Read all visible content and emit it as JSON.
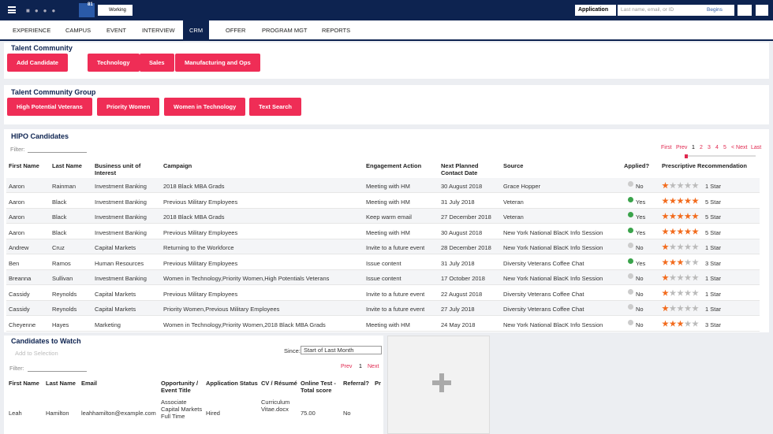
{
  "header": {
    "notification_count": "81",
    "status": "Working",
    "application_label": "Application",
    "search_placeholder": "Last name, email, or ID",
    "search_mode": "Begins"
  },
  "tabs": {
    "items": [
      "EXPERIENCE",
      "CAMPUS",
      "EVENT",
      "INTERVIEW",
      "CRM",
      "OFFER",
      "PROGRAM MGT",
      "REPORTS"
    ],
    "active": 4
  },
  "talent_community": {
    "title": "Talent Community",
    "buttons": [
      "Add Candidate",
      "Technology",
      "Sales",
      "Manufacturing and Ops"
    ]
  },
  "talent_group": {
    "title": "Talent Community Group",
    "buttons": [
      "High Potential Veterans",
      "Priority Women",
      "Women in Technology",
      "Text Search"
    ]
  },
  "hipo": {
    "title": "HIPO Candidates",
    "filter_label": "Filter:",
    "pager": [
      "First",
      "Prev",
      "1",
      "2",
      "3",
      "4",
      "5",
      "< Next",
      "Last"
    ],
    "columns": [
      "First Name",
      "Last Name",
      "Business unit of Interest",
      "Campaign",
      "Engagement Action",
      "Next Planned Contact Date",
      "Source",
      "Applied?",
      "Prescriptive Recommendation"
    ],
    "rows": [
      {
        "first": "Aaron",
        "last": "Rainman",
        "unit": "Investment Banking",
        "campaign": "2018 Black MBA Grads",
        "action": "Meeting with HM",
        "date": "30 August 2018",
        "source": "Grace Hopper",
        "applied": "No",
        "stars": 1,
        "stars_label": "1 Star"
      },
      {
        "first": "Aaron",
        "last": "Black",
        "unit": "Investment Banking",
        "campaign": "Previous Military Employees",
        "action": "Meeting with HM",
        "date": "31 July 2018",
        "source": "Veteran",
        "applied": "Yes",
        "stars": 5,
        "stars_label": "5 Star"
      },
      {
        "first": "Aaron",
        "last": "Black",
        "unit": "Investment Banking",
        "campaign": "2018 Black MBA Grads",
        "action": "Keep warm email",
        "date": "27 December 2018",
        "source": "Veteran",
        "applied": "Yes",
        "stars": 5,
        "stars_label": "5 Star"
      },
      {
        "first": "Aaron",
        "last": "Black",
        "unit": "Investment Banking",
        "campaign": "Previous Military Employees",
        "action": "Meeting with HM",
        "date": "30 August 2018",
        "source": "New York National BlacK Info Session",
        "applied": "Yes",
        "stars": 5,
        "stars_label": "5 Star"
      },
      {
        "first": "Andrew",
        "last": "Cruz",
        "unit": "Capital Markets",
        "campaign": "Returning to the Workforce",
        "action": "Invite to a future event",
        "date": "28 December 2018",
        "source": "New York National BlacK Info Session",
        "applied": "No",
        "stars": 1,
        "stars_label": "1 Star"
      },
      {
        "first": "Ben",
        "last": "Ramos",
        "unit": "Human Resources",
        "campaign": "Previous Military Employees",
        "action": "Issue content",
        "date": "31 July 2018",
        "source": "Diversity Veterans Coffee Chat",
        "applied": "Yes",
        "stars": 3,
        "stars_label": "3 Star"
      },
      {
        "first": "Breanna",
        "last": "Sullivan",
        "unit": "Investment Banking",
        "campaign": "Women in Technology,Priority Women,High Potentials Veterans",
        "action": "Issue content",
        "date": "17 October 2018",
        "source": "New York National BlacK Info Session",
        "applied": "No",
        "stars": 1,
        "stars_label": "1 Star"
      },
      {
        "first": "Cassidy",
        "last": "Reynolds",
        "unit": "Capital Markets",
        "campaign": "Previous Military Employees",
        "action": "Invite to a future event",
        "date": "22 August 2018",
        "source": "Diversity Veterans Coffee Chat",
        "applied": "No",
        "stars": 1,
        "stars_label": "1 Star"
      },
      {
        "first": "Cassidy",
        "last": "Reynolds",
        "unit": "Capital Markets",
        "campaign": "Priority Women,Previous Military Employees",
        "action": "Invite to a future event",
        "date": "27 July 2018",
        "source": "Diversity Veterans Coffee Chat",
        "applied": "No",
        "stars": 1,
        "stars_label": "1 Star"
      },
      {
        "first": "Cheyenne",
        "last": "Hayes",
        "unit": "Marketing",
        "campaign": "Women in Technology,Priority Women,2018 Black MBA Grads",
        "action": "Meeting with HM",
        "date": "24 May 2018",
        "source": "New York National BlacK Info Session",
        "applied": "No",
        "stars": 3,
        "stars_label": "3 Star"
      }
    ]
  },
  "watch": {
    "title": "Candidates to Watch",
    "add_selection": "Add to Selection",
    "since_label": "Since:",
    "since_value": "Start of Last Month",
    "filter_label": "Filter:",
    "pager": [
      "Prev",
      "1",
      "Next"
    ],
    "columns": [
      "First Name",
      "Last Name",
      "Email",
      "Opportunity / Event Title",
      "Application Status",
      "CV / Résumé",
      "Online Test - Total score",
      "Referral?",
      "Pr"
    ],
    "rows": [
      [
        "Leah",
        "Hamilton",
        "leahhamilton@example.com",
        "Associate Capital Markets Full Time",
        "Hired",
        "Curriculum Vitae.docx",
        "75.00",
        "No"
      ]
    ]
  }
}
